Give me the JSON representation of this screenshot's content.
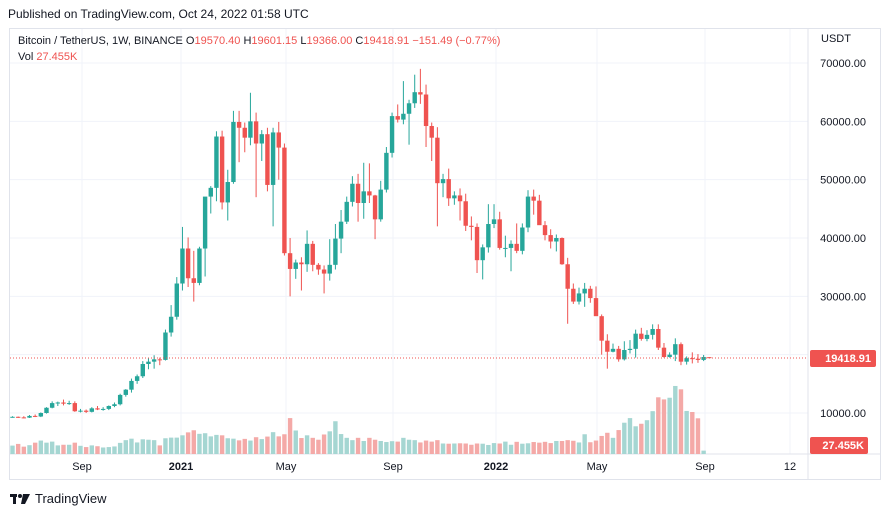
{
  "header": {
    "published_text": "Published on TradingView.com, Oct 24, 2022 01:58 UTC"
  },
  "legend": {
    "symbol": "Bitcoin / TetherUS, 1W, BINANCE",
    "open_label": "O",
    "open": "19570.40",
    "high_label": "H",
    "high": "19601.15",
    "low_label": "L",
    "low": "19366.00",
    "close_label": "C",
    "close": "19418.91",
    "change": "−151.49 (−0.77%)",
    "vol_label": "Vol",
    "vol_value": "27.455K"
  },
  "currency": "USDT",
  "price_label": "19418.91",
  "volume_label": "27.455K",
  "footer": {
    "brand": "TradingView"
  },
  "colors": {
    "up": "#26a69a",
    "down": "#ef5350",
    "vol_up": "#a5d6d2",
    "vol_down": "#f4a9a7",
    "grid": "#f0f3fa"
  },
  "chart_data": {
    "type": "candlestick",
    "interval": "1W",
    "y_axis": {
      "ticks": [
        10000,
        20000,
        30000,
        40000,
        50000,
        60000,
        70000
      ],
      "tick_labels": [
        "10000.00",
        "20000.00",
        "30000.00",
        "40000.00",
        "50000.00",
        "60000.00",
        "70000.00"
      ],
      "position": "right"
    },
    "x_axis": {
      "tick_labels": [
        "Sep",
        "2021",
        "May",
        "Sep",
        "2022",
        "May",
        "Sep",
        "12"
      ]
    },
    "last_price": 19418.91,
    "ohlc": [
      [
        9300,
        9450,
        9200,
        9350
      ],
      [
        9350,
        9400,
        9150,
        9250
      ],
      [
        9250,
        9450,
        9100,
        9200
      ],
      [
        9200,
        9650,
        9150,
        9500
      ],
      [
        9500,
        9750,
        9300,
        9400
      ],
      [
        9400,
        10100,
        9300,
        10000
      ],
      [
        10000,
        11000,
        9900,
        10900
      ],
      [
        10900,
        12000,
        10800,
        11700
      ],
      [
        11700,
        11950,
        11200,
        11800
      ],
      [
        11800,
        12300,
        11300,
        11600
      ],
      [
        11600,
        12100,
        11400,
        11700
      ],
      [
        11700,
        12000,
        10200,
        10300
      ],
      [
        10300,
        10700,
        10100,
        10400
      ],
      [
        10400,
        10600,
        10000,
        10200
      ],
      [
        10200,
        11000,
        10100,
        10800
      ],
      [
        10800,
        11200,
        10500,
        10600
      ],
      [
        10600,
        11000,
        10400,
        10700
      ],
      [
        10700,
        11300,
        10500,
        11200
      ],
      [
        11200,
        11800,
        11000,
        11500
      ],
      [
        11500,
        13300,
        11300,
        13100
      ],
      [
        13100,
        14100,
        12800,
        14000
      ],
      [
        14000,
        15900,
        13500,
        15500
      ],
      [
        15500,
        16600,
        15000,
        16300
      ],
      [
        16300,
        18900,
        16000,
        18400
      ],
      [
        18400,
        19400,
        17500,
        18800
      ],
      [
        18800,
        19900,
        17600,
        19200
      ],
      [
        19200,
        19500,
        18200,
        19100
      ],
      [
        19100,
        24300,
        19000,
        23800
      ],
      [
        23800,
        28500,
        23100,
        26500
      ],
      [
        26500,
        33300,
        26000,
        32200
      ],
      [
        32200,
        41900,
        31000,
        38200
      ],
      [
        38200,
        40100,
        31600,
        33100
      ],
      [
        33100,
        37800,
        29100,
        32300
      ],
      [
        32300,
        38500,
        31900,
        38200
      ],
      [
        38200,
        47000,
        33400,
        47100
      ],
      [
        47100,
        48900,
        44200,
        48600
      ],
      [
        48600,
        58300,
        46300,
        57400
      ],
      [
        57400,
        58400,
        44900,
        46100
      ],
      [
        46100,
        51700,
        43000,
        49600
      ],
      [
        49600,
        61800,
        49300,
        59900
      ],
      [
        59900,
        61800,
        53000,
        58900
      ],
      [
        58900,
        59800,
        54700,
        57200
      ],
      [
        57200,
        64900,
        55900,
        60000
      ],
      [
        60000,
        61500,
        47000,
        56200
      ],
      [
        56200,
        58500,
        53200,
        57800
      ],
      [
        57800,
        58900,
        48000,
        49100
      ],
      [
        49100,
        58900,
        42000,
        58100
      ],
      [
        58100,
        59900,
        50000,
        55500
      ],
      [
        55500,
        56200,
        37000,
        37400
      ],
      [
        37400,
        40000,
        30000,
        34700
      ],
      [
        34700,
        36300,
        33000,
        35800
      ],
      [
        35800,
        36700,
        31000,
        35500
      ],
      [
        35500,
        41300,
        34200,
        39000
      ],
      [
        39000,
        39500,
        34300,
        35400
      ],
      [
        35400,
        35700,
        33700,
        34600
      ],
      [
        34600,
        35300,
        30500,
        33900
      ],
      [
        33900,
        39800,
        32700,
        35400
      ],
      [
        35400,
        42400,
        34600,
        39900
      ],
      [
        39900,
        44800,
        37400,
        42800
      ],
      [
        42800,
        47100,
        42400,
        46200
      ],
      [
        46200,
        50600,
        45400,
        49300
      ],
      [
        49300,
        51000,
        42800,
        46000
      ],
      [
        46000,
        52900,
        43300,
        48000
      ],
      [
        48000,
        52800,
        46000,
        47300
      ],
      [
        47300,
        47400,
        39800,
        43200
      ],
      [
        43200,
        49800,
        42800,
        48300
      ],
      [
        48300,
        55600,
        47800,
        54600
      ],
      [
        54600,
        61500,
        53800,
        60900
      ],
      [
        60900,
        62900,
        59800,
        60300
      ],
      [
        60300,
        66900,
        59500,
        61300
      ],
      [
        61300,
        63700,
        56000,
        63100
      ],
      [
        63100,
        68000,
        62300,
        65000
      ],
      [
        65000,
        69000,
        63000,
        64600
      ],
      [
        64600,
        66300,
        55600,
        59200
      ],
      [
        59200,
        59800,
        53200,
        57200
      ],
      [
        57200,
        59000,
        42000,
        49400
      ],
      [
        49400,
        51000,
        47000,
        50100
      ],
      [
        50100,
        51900,
        45500,
        46800
      ],
      [
        46800,
        48000,
        45700,
        47300
      ],
      [
        47300,
        48500,
        43000,
        46300
      ],
      [
        46300,
        47600,
        41200,
        42100
      ],
      [
        42100,
        43700,
        39600,
        41900
      ],
      [
        41900,
        42500,
        34000,
        36200
      ],
      [
        36200,
        38900,
        32900,
        38400
      ],
      [
        38400,
        45800,
        37500,
        42400
      ],
      [
        42400,
        45800,
        41700,
        43200
      ],
      [
        43200,
        44500,
        38000,
        38300
      ],
      [
        38300,
        40400,
        36700,
        38300
      ],
      [
        38300,
        39600,
        34300,
        39000
      ],
      [
        39000,
        42500,
        37400,
        37800
      ],
      [
        37800,
        42500,
        37200,
        41800
      ],
      [
        41800,
        48200,
        41000,
        47100
      ],
      [
        47100,
        48300,
        44000,
        46400
      ],
      [
        46400,
        47400,
        42500,
        42200
      ],
      [
        42200,
        42900,
        39600,
        40500
      ],
      [
        40500,
        41500,
        38200,
        39400
      ],
      [
        39400,
        40600,
        37700,
        40000
      ],
      [
        40000,
        40100,
        35400,
        35500
      ],
      [
        35500,
        36600,
        25300,
        31300
      ],
      [
        31300,
        32200,
        28700,
        29100
      ],
      [
        29100,
        31500,
        28600,
        30500
      ],
      [
        30500,
        32300,
        28200,
        31300
      ],
      [
        31300,
        31800,
        28900,
        29700
      ],
      [
        29700,
        31700,
        26700,
        26600
      ],
      [
        26600,
        26900,
        20000,
        22400
      ],
      [
        22400,
        23500,
        17600,
        20500
      ],
      [
        20500,
        21900,
        20400,
        21000
      ],
      [
        21000,
        21500,
        18800,
        19200
      ],
      [
        19200,
        22300,
        19000,
        20800
      ],
      [
        20800,
        22500,
        20200,
        21000
      ],
      [
        21000,
        24300,
        19500,
        23600
      ],
      [
        23600,
        24600,
        22400,
        22700
      ],
      [
        22700,
        24200,
        22300,
        23400
      ],
      [
        23400,
        25200,
        22600,
        24400
      ],
      [
        24400,
        25200,
        20800,
        21200
      ],
      [
        21200,
        22000,
        19500,
        19600
      ],
      [
        19600,
        20400,
        19500,
        20000
      ],
      [
        20000,
        22800,
        18900,
        21800
      ],
      [
        21800,
        22100,
        18200,
        18800
      ],
      [
        18800,
        19700,
        18300,
        19400
      ],
      [
        19400,
        20400,
        18500,
        19300
      ],
      [
        19300,
        20100,
        18600,
        19100
      ],
      [
        19100,
        19950,
        18900,
        19600
      ],
      [
        19570,
        19601,
        19366,
        19419
      ]
    ],
    "volume": [
      4.0,
      4.8,
      3.5,
      4.2,
      5.4,
      6.4,
      5.4,
      5.9,
      4.1,
      4.4,
      4.4,
      5.4,
      3.9,
      3.3,
      4.1,
      3.7,
      3.1,
      3.3,
      3.6,
      5.3,
      6.6,
      7.3,
      5.5,
      7.0,
      6.8,
      6.6,
      4.1,
      7.5,
      7.8,
      7.8,
      8.9,
      10.3,
      11.3,
      9.6,
      9.9,
      8.4,
      9.1,
      8.9,
      7.5,
      7.3,
      6.5,
      7.2,
      6.4,
      8.0,
      7.1,
      8.3,
      10.4,
      8.4,
      9.4,
      17.1,
      11.2,
      7.6,
      8.9,
      7.7,
      6.8,
      9.3,
      10.8,
      15.6,
      9.5,
      7.7,
      6.6,
      7.7,
      6.2,
      7.7,
      6.8,
      6.2,
      5.7,
      6.1,
      5.9,
      7.7,
      6.8,
      6.6,
      5.5,
      6.4,
      5.9,
      6.6,
      5.0,
      4.9,
      5.0,
      5.1,
      5.0,
      4.4,
      5.0,
      4.9,
      4.3,
      5.2,
      5.0,
      5.9,
      4.4,
      5.8,
      4.9,
      5.1,
      5.7,
      5.4,
      5.8,
      5.2,
      6.2,
      6.2,
      6.6,
      6.3,
      5.5,
      9.4,
      5.6,
      6.4,
      8.6,
      10.1,
      7.7,
      11.4,
      14.9,
      17.1,
      13.2,
      14.4,
      16.1,
      20.4,
      27.0,
      26.0,
      26.8,
      32.4,
      30.8,
      20.5,
      20.0,
      17.0,
      1.6
    ]
  }
}
